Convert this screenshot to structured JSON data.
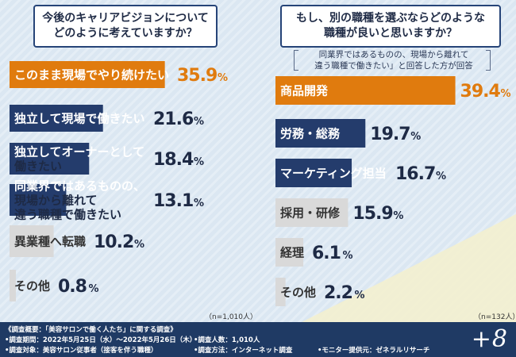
{
  "questions": {
    "left": [
      "今後のキャリアビジョンについて",
      "どのように考えていますか？"
    ],
    "right": [
      "もし、別の職種を選ぶならどのような",
      "職種が良いと思いますか？"
    ]
  },
  "right_note": [
    "同業界ではあるものの、現場から離れて",
    "違う職種で働きたい」と回答した方が回答"
  ],
  "sample_sizes": {
    "left": "（n=1,010人）",
    "right": "（n=132人）"
  },
  "chart_data": [
    {
      "type": "bar",
      "orientation": "horizontal",
      "title": "今後のキャリアビジョンについてどのように考えていますか？",
      "unit": "%",
      "categories": [
        [
          "このまま現場でやり続けたい"
        ],
        [
          "独立して現場で働きたい"
        ],
        [
          "独立してオーナーとして",
          "働きたい"
        ],
        [
          "同業界ではあるものの、",
          "現場から離れて",
          "違う職種で働きたい"
        ],
        [
          "異業種へ転職"
        ],
        [
          "その他"
        ]
      ],
      "values": [
        35.9,
        21.6,
        18.4,
        13.1,
        10.2,
        0.8
      ],
      "labels": [
        "35.9",
        "21.6",
        "18.4",
        "13.1",
        "10.2",
        "0.8"
      ],
      "highlight_index": 0,
      "n": "1,010人"
    },
    {
      "type": "bar",
      "orientation": "horizontal",
      "title": "もし、別の職種を選ぶならどのような職種が良いと思いますか？",
      "unit": "%",
      "categories": [
        [
          "商品開発"
        ],
        [
          "労務・総務"
        ],
        [
          "マーケティング担当"
        ],
        [
          "採用・研修"
        ],
        [
          "経理"
        ],
        [
          "その他"
        ]
      ],
      "values": [
        39.4,
        19.7,
        16.7,
        15.9,
        6.1,
        2.2
      ],
      "labels": [
        "39.4",
        "19.7",
        "16.7",
        "15.9",
        "6.1",
        "2.2"
      ],
      "highlight_index": 0,
      "n": "132人"
    }
  ],
  "colors": {
    "highlight": "#e07b0e",
    "primary": "#243c6c",
    "muted": "#d9d9d9",
    "background": "#dbe7f2",
    "footer": "#1f3a64"
  },
  "footer": {
    "lines": [
      "《調査概要：「美容サロンで働く人たち」に関する調査》",
      "•調査期間：2022年5月25日（水）〜2022年5月26日（木）",
      "•調査人数：1,010人",
      "•調査対象：美容サロン従事者（接客を伴う職種）",
      "•調査方法：インターネット調査",
      "•モニター提供元：ゼネラルリサーチ"
    ],
    "logo": "+8"
  }
}
